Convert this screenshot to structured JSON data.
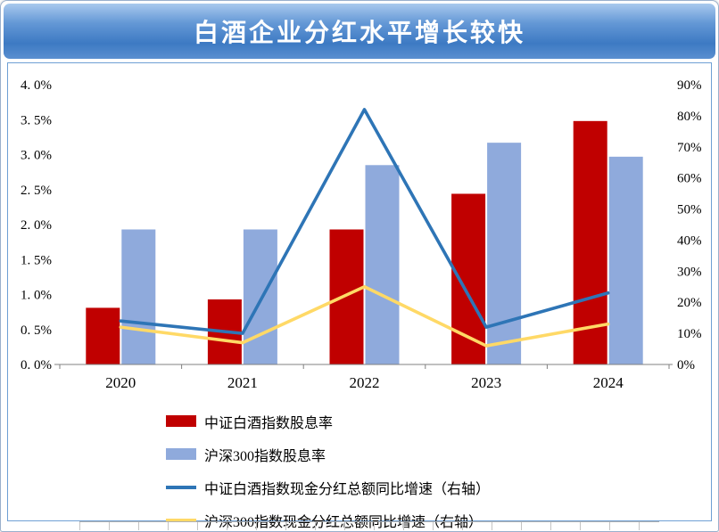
{
  "header": {
    "title": "白酒企业分红水平增长较快"
  },
  "chart_data": {
    "type": "combo",
    "title": "白酒企业分红水平增长较快",
    "categories": [
      "2020",
      "2021",
      "2022",
      "2023",
      "2024"
    ],
    "series": [
      {
        "name": "中证白酒指数股息率",
        "type": "bar",
        "axis": "left",
        "color": "#C00000",
        "values": [
          0.81,
          0.93,
          1.93,
          2.44,
          3.48
        ]
      },
      {
        "name": "沪深300指数股息率",
        "type": "bar",
        "axis": "left",
        "color": "#8FAADC",
        "values": [
          1.93,
          1.93,
          2.85,
          3.17,
          2.97
        ]
      },
      {
        "name": "中证白酒指数现金分红总额同比增速（右轴）",
        "type": "line",
        "axis": "right",
        "color": "#2E75B6",
        "values": [
          14,
          10,
          82,
          12,
          23
        ]
      },
      {
        "name": "沪深300指数现金分红总额同比增速（右轴）",
        "type": "line",
        "axis": "right",
        "color": "#FFD966",
        "values": [
          12,
          7,
          25,
          6,
          13
        ]
      }
    ],
    "left_axis": {
      "min": 0,
      "max": 4,
      "step": 0.5,
      "labels": [
        "0. 0%",
        "0. 5%",
        "1. 0%",
        "1. 5%",
        "2. 0%",
        "2. 5%",
        "3. 0%",
        "3. 5%",
        "4. 0%"
      ]
    },
    "right_axis": {
      "min": 0,
      "max": 90,
      "step": 10,
      "labels": [
        "0%",
        "10%",
        "20%",
        "30%",
        "40%",
        "50%",
        "60%",
        "70%",
        "80%",
        "90%"
      ]
    },
    "legend_position": "bottom-left",
    "grid": false
  },
  "colors": {
    "title_gradient_top": "#A9C9EE",
    "title_gradient_bottom": "#3D7AC3",
    "bar_red": "#C00000",
    "bar_blue": "#8FAADC",
    "line_blue": "#2E75B6",
    "line_yellow": "#FFD966",
    "panel_border": "#6FA0D4"
  }
}
